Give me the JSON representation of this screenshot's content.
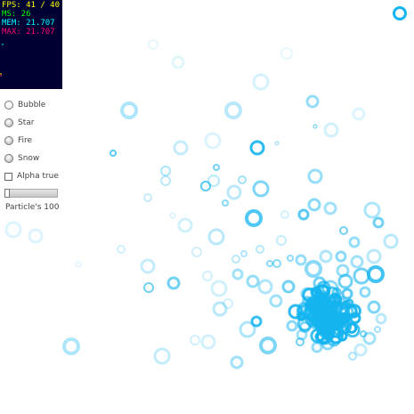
{
  "stats": {
    "fps": "FPS: 41 / 40",
    "ms": "MS: 26",
    "mem": "MEM: 21.707",
    "max": "MAX: 21.707"
  },
  "controls": {
    "effects": [
      {
        "label": "Bubble",
        "selected": true
      },
      {
        "label": "Star",
        "selected": false
      },
      {
        "label": "Fire",
        "selected": false
      },
      {
        "label": "Snow",
        "selected": false
      }
    ],
    "alpha_label": "Alpha true",
    "particle_label": "Particle's 100"
  },
  "colors": {
    "bubble": "#14b4f0",
    "stats_bg": "#000033",
    "fps": "#ffff00",
    "ms": "#00ff00",
    "mem": "#00ffff",
    "max": "#ff0070"
  }
}
